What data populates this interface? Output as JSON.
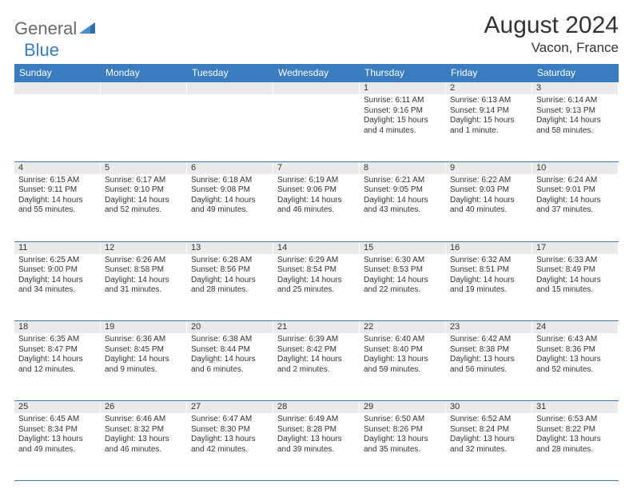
{
  "logo": {
    "part1": "General",
    "part2": "Blue"
  },
  "title": "August 2024",
  "location": "Vacon, France",
  "colors": {
    "header_bg": "#3a7dbf",
    "header_text": "#ffffff",
    "daynum_bg": "#eaeaea",
    "border": "#3a7dbf",
    "text": "#333333",
    "logo_gray": "#6a6a6a",
    "logo_blue": "#3a7dbf"
  },
  "day_headers": [
    "Sunday",
    "Monday",
    "Tuesday",
    "Wednesday",
    "Thursday",
    "Friday",
    "Saturday"
  ],
  "weeks": [
    [
      {
        "n": "",
        "sr": "",
        "ss": "",
        "dl": ""
      },
      {
        "n": "",
        "sr": "",
        "ss": "",
        "dl": ""
      },
      {
        "n": "",
        "sr": "",
        "ss": "",
        "dl": ""
      },
      {
        "n": "",
        "sr": "",
        "ss": "",
        "dl": ""
      },
      {
        "n": "1",
        "sr": "Sunrise: 6:11 AM",
        "ss": "Sunset: 9:16 PM",
        "dl": "Daylight: 15 hours and 4 minutes."
      },
      {
        "n": "2",
        "sr": "Sunrise: 6:13 AM",
        "ss": "Sunset: 9:14 PM",
        "dl": "Daylight: 15 hours and 1 minute."
      },
      {
        "n": "3",
        "sr": "Sunrise: 6:14 AM",
        "ss": "Sunset: 9:13 PM",
        "dl": "Daylight: 14 hours and 58 minutes."
      }
    ],
    [
      {
        "n": "4",
        "sr": "Sunrise: 6:15 AM",
        "ss": "Sunset: 9:11 PM",
        "dl": "Daylight: 14 hours and 55 minutes."
      },
      {
        "n": "5",
        "sr": "Sunrise: 6:17 AM",
        "ss": "Sunset: 9:10 PM",
        "dl": "Daylight: 14 hours and 52 minutes."
      },
      {
        "n": "6",
        "sr": "Sunrise: 6:18 AM",
        "ss": "Sunset: 9:08 PM",
        "dl": "Daylight: 14 hours and 49 minutes."
      },
      {
        "n": "7",
        "sr": "Sunrise: 6:19 AM",
        "ss": "Sunset: 9:06 PM",
        "dl": "Daylight: 14 hours and 46 minutes."
      },
      {
        "n": "8",
        "sr": "Sunrise: 6:21 AM",
        "ss": "Sunset: 9:05 PM",
        "dl": "Daylight: 14 hours and 43 minutes."
      },
      {
        "n": "9",
        "sr": "Sunrise: 6:22 AM",
        "ss": "Sunset: 9:03 PM",
        "dl": "Daylight: 14 hours and 40 minutes."
      },
      {
        "n": "10",
        "sr": "Sunrise: 6:24 AM",
        "ss": "Sunset: 9:01 PM",
        "dl": "Daylight: 14 hours and 37 minutes."
      }
    ],
    [
      {
        "n": "11",
        "sr": "Sunrise: 6:25 AM",
        "ss": "Sunset: 9:00 PM",
        "dl": "Daylight: 14 hours and 34 minutes."
      },
      {
        "n": "12",
        "sr": "Sunrise: 6:26 AM",
        "ss": "Sunset: 8:58 PM",
        "dl": "Daylight: 14 hours and 31 minutes."
      },
      {
        "n": "13",
        "sr": "Sunrise: 6:28 AM",
        "ss": "Sunset: 8:56 PM",
        "dl": "Daylight: 14 hours and 28 minutes."
      },
      {
        "n": "14",
        "sr": "Sunrise: 6:29 AM",
        "ss": "Sunset: 8:54 PM",
        "dl": "Daylight: 14 hours and 25 minutes."
      },
      {
        "n": "15",
        "sr": "Sunrise: 6:30 AM",
        "ss": "Sunset: 8:53 PM",
        "dl": "Daylight: 14 hours and 22 minutes."
      },
      {
        "n": "16",
        "sr": "Sunrise: 6:32 AM",
        "ss": "Sunset: 8:51 PM",
        "dl": "Daylight: 14 hours and 19 minutes."
      },
      {
        "n": "17",
        "sr": "Sunrise: 6:33 AM",
        "ss": "Sunset: 8:49 PM",
        "dl": "Daylight: 14 hours and 15 minutes."
      }
    ],
    [
      {
        "n": "18",
        "sr": "Sunrise: 6:35 AM",
        "ss": "Sunset: 8:47 PM",
        "dl": "Daylight: 14 hours and 12 minutes."
      },
      {
        "n": "19",
        "sr": "Sunrise: 6:36 AM",
        "ss": "Sunset: 8:45 PM",
        "dl": "Daylight: 14 hours and 9 minutes."
      },
      {
        "n": "20",
        "sr": "Sunrise: 6:38 AM",
        "ss": "Sunset: 8:44 PM",
        "dl": "Daylight: 14 hours and 6 minutes."
      },
      {
        "n": "21",
        "sr": "Sunrise: 6:39 AM",
        "ss": "Sunset: 8:42 PM",
        "dl": "Daylight: 14 hours and 2 minutes."
      },
      {
        "n": "22",
        "sr": "Sunrise: 6:40 AM",
        "ss": "Sunset: 8:40 PM",
        "dl": "Daylight: 13 hours and 59 minutes."
      },
      {
        "n": "23",
        "sr": "Sunrise: 6:42 AM",
        "ss": "Sunset: 8:38 PM",
        "dl": "Daylight: 13 hours and 56 minutes."
      },
      {
        "n": "24",
        "sr": "Sunrise: 6:43 AM",
        "ss": "Sunset: 8:36 PM",
        "dl": "Daylight: 13 hours and 52 minutes."
      }
    ],
    [
      {
        "n": "25",
        "sr": "Sunrise: 6:45 AM",
        "ss": "Sunset: 8:34 PM",
        "dl": "Daylight: 13 hours and 49 minutes."
      },
      {
        "n": "26",
        "sr": "Sunrise: 6:46 AM",
        "ss": "Sunset: 8:32 PM",
        "dl": "Daylight: 13 hours and 46 minutes."
      },
      {
        "n": "27",
        "sr": "Sunrise: 6:47 AM",
        "ss": "Sunset: 8:30 PM",
        "dl": "Daylight: 13 hours and 42 minutes."
      },
      {
        "n": "28",
        "sr": "Sunrise: 6:49 AM",
        "ss": "Sunset: 8:28 PM",
        "dl": "Daylight: 13 hours and 39 minutes."
      },
      {
        "n": "29",
        "sr": "Sunrise: 6:50 AM",
        "ss": "Sunset: 8:26 PM",
        "dl": "Daylight: 13 hours and 35 minutes."
      },
      {
        "n": "30",
        "sr": "Sunrise: 6:52 AM",
        "ss": "Sunset: 8:24 PM",
        "dl": "Daylight: 13 hours and 32 minutes."
      },
      {
        "n": "31",
        "sr": "Sunrise: 6:53 AM",
        "ss": "Sunset: 8:22 PM",
        "dl": "Daylight: 13 hours and 28 minutes."
      }
    ]
  ]
}
